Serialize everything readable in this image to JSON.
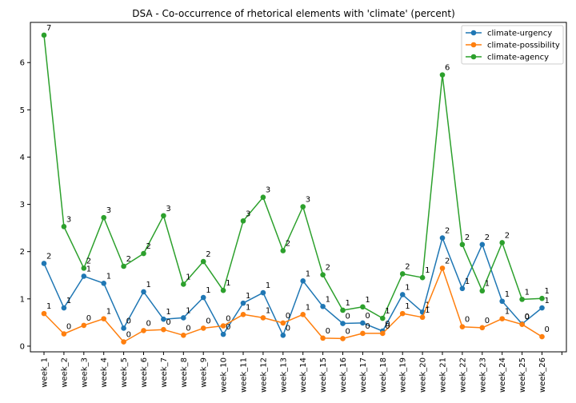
{
  "chart_data": {
    "type": "line",
    "title": "DSA - Co-occurrence of rhetorical elements with 'climate' (percent)",
    "xlabel": "",
    "ylabel": "",
    "categories": [
      "week_1",
      "week_2",
      "week_3",
      "week_4",
      "week_5",
      "week_6",
      "week_7",
      "week_8",
      "week_9",
      "week_10",
      "week_11",
      "week_12",
      "week_13",
      "week_14",
      "week_15",
      "week_16",
      "week_17",
      "week_18",
      "week_19",
      "week_20",
      "week_21",
      "week_22",
      "week_23",
      "week_24",
      "week_25",
      "week_26"
    ],
    "ylim": [
      -0.12,
      6.85
    ],
    "yticks": [
      0,
      1,
      2,
      3,
      4,
      5,
      6
    ],
    "grid": false,
    "legend_position": "top-right",
    "series": [
      {
        "name": "climate-urgency",
        "color": "#1f77b4",
        "values": [
          1.75,
          0.81,
          1.48,
          1.33,
          0.38,
          1.15,
          0.57,
          0.6,
          1.03,
          0.25,
          0.91,
          1.13,
          0.23,
          1.38,
          0.84,
          0.48,
          0.49,
          0.32,
          1.09,
          0.72,
          2.29,
          1.22,
          2.15,
          0.95,
          0.47,
          0.81
        ],
        "labels": [
          "2",
          "1",
          "1",
          "1",
          "0",
          "1",
          "1",
          "1",
          "1",
          "0",
          "1",
          "1",
          "0",
          "1",
          "1",
          "0",
          "0",
          "0",
          "1",
          "1",
          "2",
          "1",
          "2",
          "1",
          "0",
          "1"
        ]
      },
      {
        "name": "climate-possibility",
        "color": "#ff7f0e",
        "values": [
          0.69,
          0.26,
          0.44,
          0.58,
          0.09,
          0.33,
          0.35,
          0.23,
          0.38,
          0.43,
          0.67,
          0.6,
          0.49,
          0.67,
          0.17,
          0.16,
          0.27,
          0.27,
          0.69,
          0.61,
          1.65,
          0.41,
          0.39,
          0.58,
          0.46,
          0.2
        ],
        "labels": [
          "1",
          "0",
          "0",
          "1",
          "0",
          "0",
          "0",
          "0",
          "0",
          "0",
          "1",
          "1",
          "0",
          "1",
          "0",
          "0",
          "0",
          "0",
          "1",
          "1",
          "2",
          "0",
          "0",
          "1",
          "0",
          "0"
        ]
      },
      {
        "name": "climate-agency",
        "color": "#2ca02c",
        "values": [
          6.58,
          2.53,
          1.65,
          2.72,
          1.69,
          1.96,
          2.76,
          1.31,
          1.79,
          1.18,
          2.65,
          3.15,
          2.02,
          2.95,
          1.51,
          0.76,
          0.83,
          0.59,
          1.53,
          1.45,
          5.74,
          2.15,
          1.17,
          2.19,
          0.99,
          1.01
        ],
        "labels": [
          "7",
          "3",
          "2",
          "3",
          "2",
          "2",
          "3",
          "1",
          "2",
          "1",
          "3",
          "3",
          "2",
          "3",
          "2",
          "1",
          "1",
          "1",
          "2",
          "1",
          "6",
          "2",
          "1",
          "2",
          "1",
          "1"
        ]
      }
    ]
  }
}
